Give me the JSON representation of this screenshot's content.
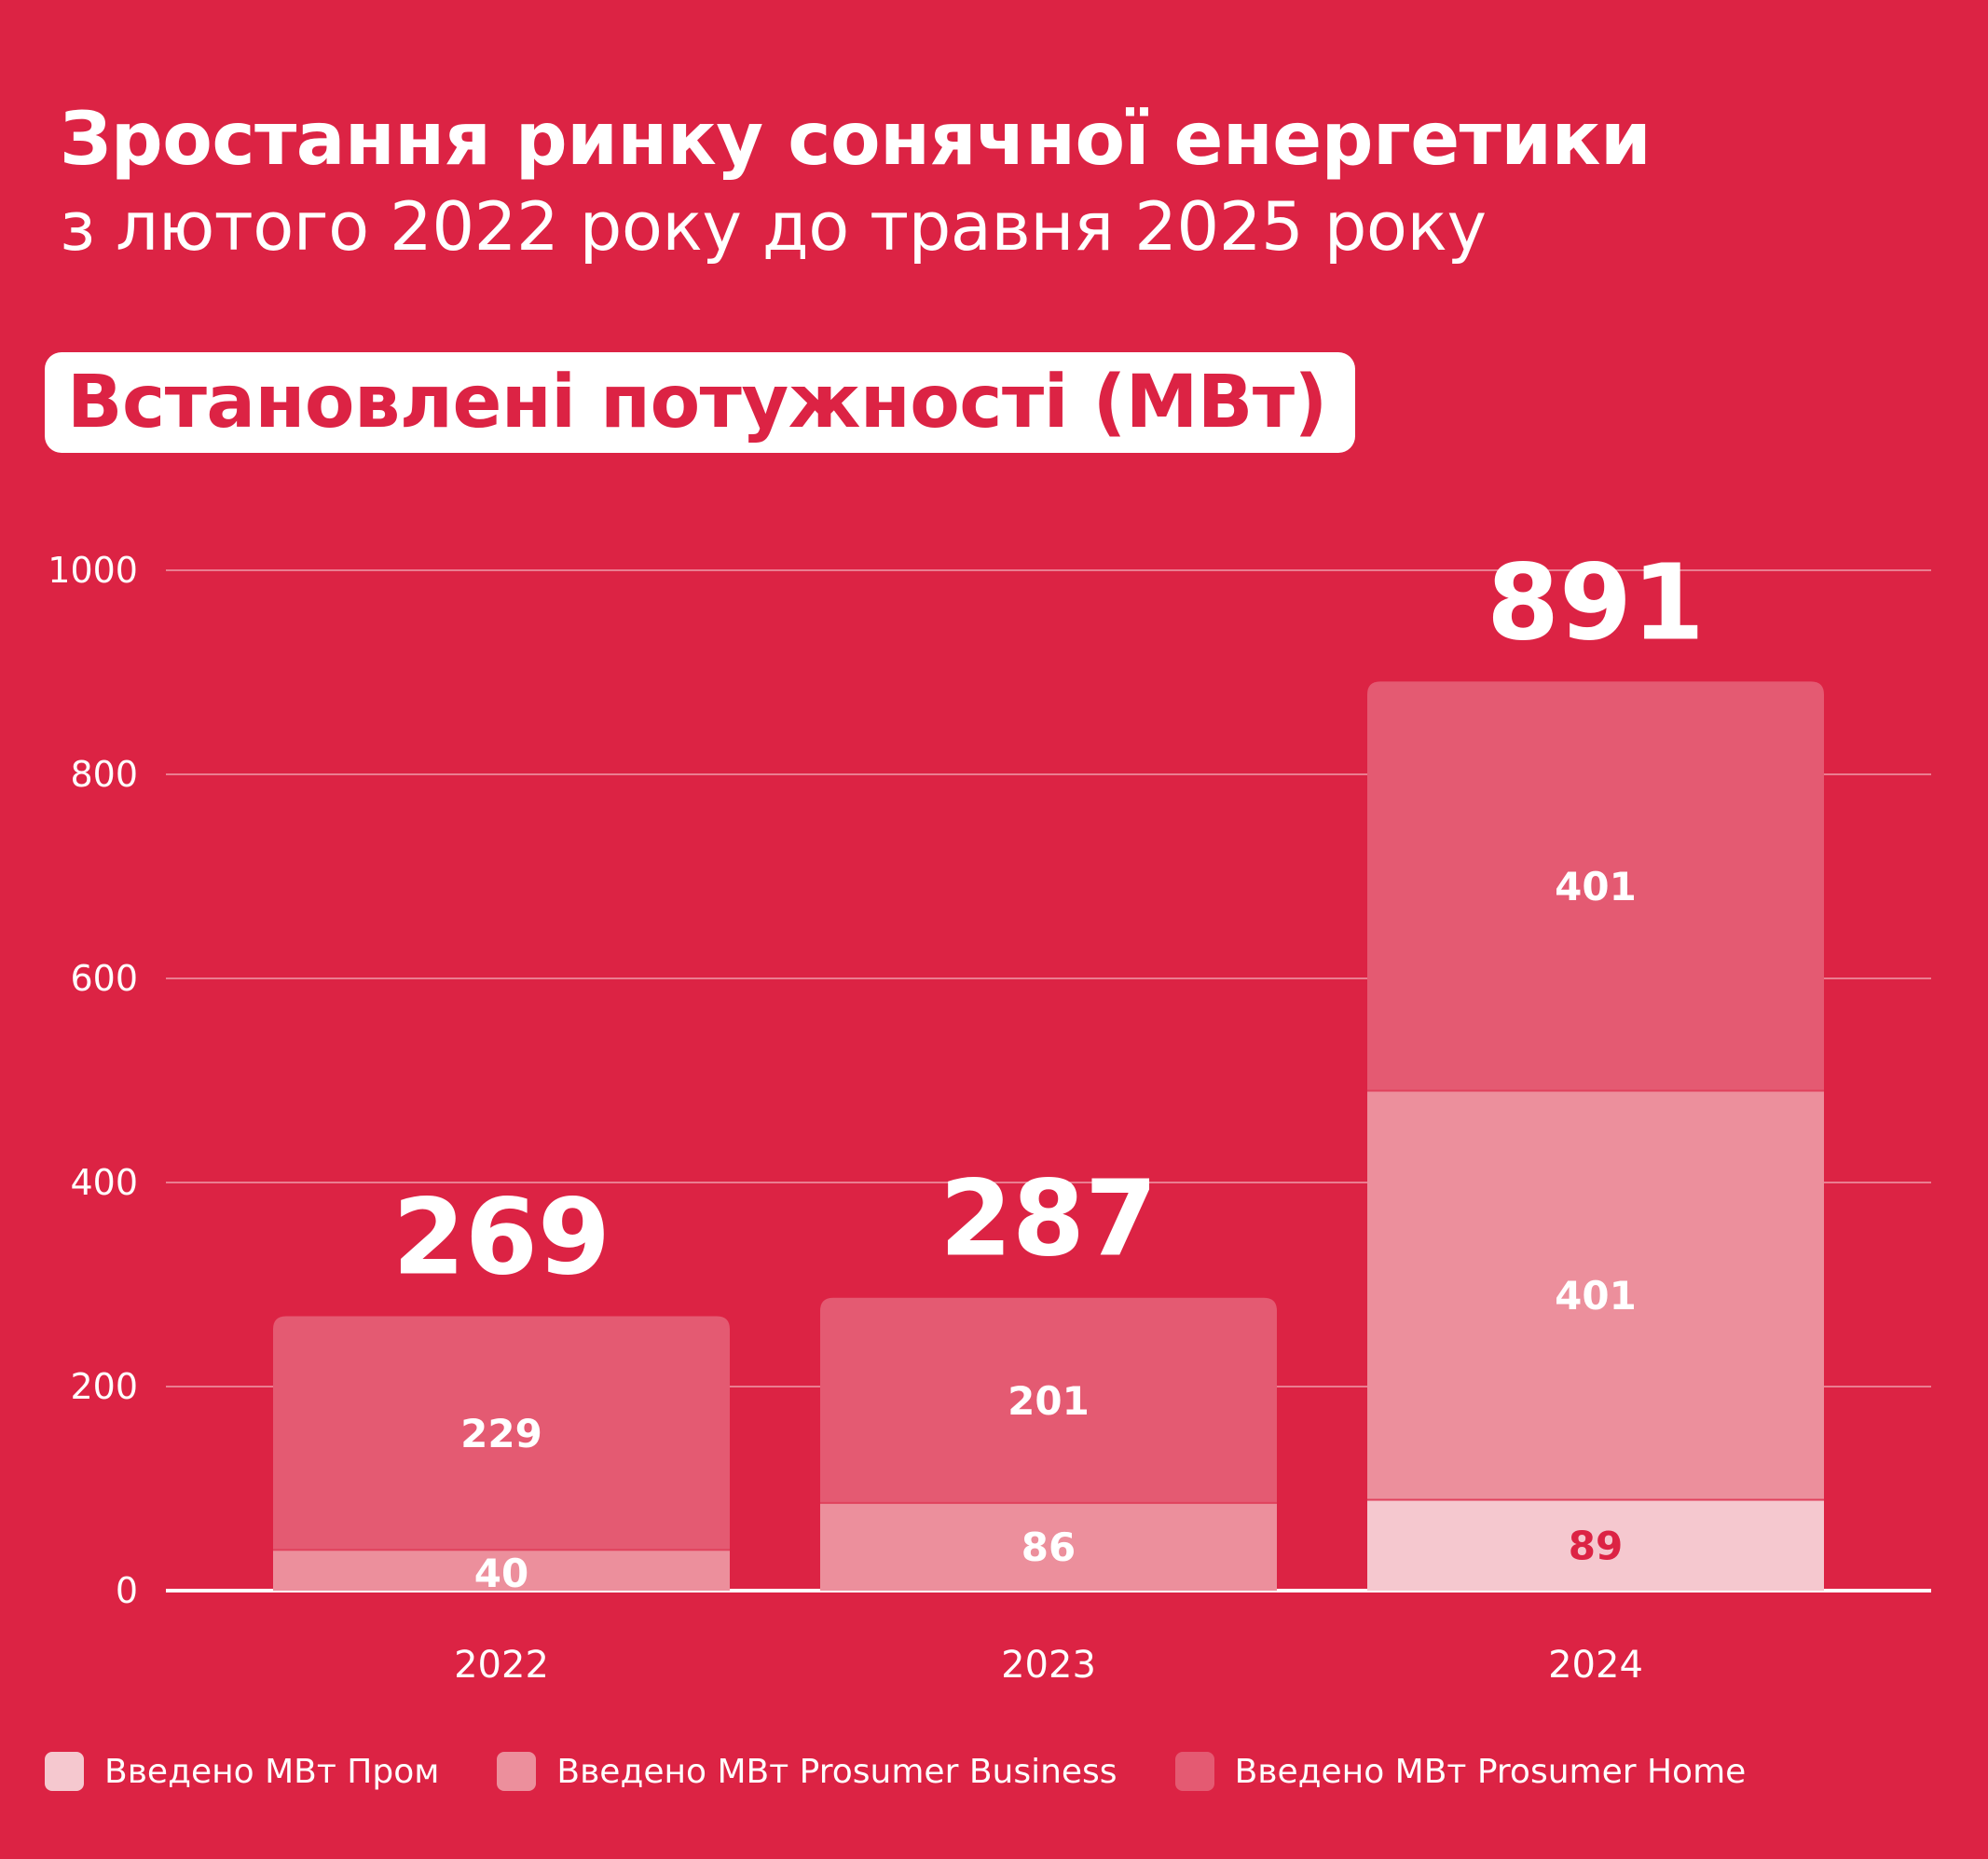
{
  "header": {
    "title": "Зростання ринку сонячної енергетики",
    "subtitle": "з лютого 2022 року до травня 2025 року",
    "section_label": "Встановлені потужності (МВт)"
  },
  "colors": {
    "background": "#dc2344",
    "series": [
      "#f5c8cf",
      "#ec8f9c",
      "#e45a72"
    ],
    "label_dark": "#dc2344",
    "label_light": "#ffffff"
  },
  "chart_data": {
    "type": "bar",
    "stacked": true,
    "categories": [
      "2022",
      "2023",
      "2024"
    ],
    "series": [
      {
        "name": "Введено МВт Пром",
        "values": [
          0,
          0,
          89
        ],
        "labels": [
          "",
          "",
          "89"
        ]
      },
      {
        "name": "Введено МВт Prosumer Business",
        "values": [
          40,
          86,
          401
        ],
        "labels": [
          "40",
          "86",
          "401"
        ]
      },
      {
        "name": "Введено МВт Prosumer Home",
        "values": [
          229,
          201,
          401
        ],
        "labels": [
          "229",
          "201",
          "401"
        ]
      }
    ],
    "totals": [
      "269",
      "287",
      "891"
    ],
    "ylim": [
      0,
      1000
    ],
    "yticks": [
      "0",
      "200",
      "400",
      "600",
      "800",
      "1000"
    ],
    "grid": true,
    "legend": "bottom"
  }
}
